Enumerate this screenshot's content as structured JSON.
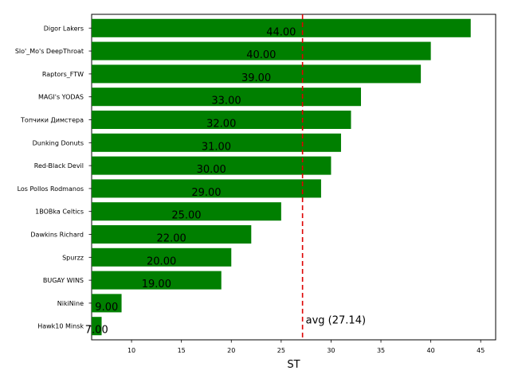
{
  "chart_data": {
    "type": "bar",
    "orientation": "horizontal",
    "categories": [
      "Digor Lakers",
      "Slo'_Mo's DeepThroat",
      "Raptors_FTW",
      "MAGI's YODAS",
      "Топчики Димстера",
      "Dunking Donuts",
      "Red-Black Devil",
      "Los Pollos Rodmanos",
      "1BOBka Celtics",
      "Dawkins Richard",
      "Spurzz",
      "BUGAY WINS",
      "NikiNine",
      "Hawk10 Minsk"
    ],
    "values": [
      44,
      40,
      39,
      33,
      32,
      31,
      30,
      29,
      25,
      22,
      20,
      19,
      9,
      7
    ],
    "value_labels": [
      "44.00",
      "40.00",
      "39.00",
      "33.00",
      "32.00",
      "31.00",
      "30.00",
      "29.00",
      "25.00",
      "22.00",
      "20.00",
      "19.00",
      "9.00",
      "7.00"
    ],
    "xlabel": "ST",
    "ylabel": "",
    "title": "",
    "xlim": [
      6,
      46.5
    ],
    "xticks": [
      10,
      15,
      20,
      25,
      30,
      35,
      40,
      45
    ],
    "xtick_labels": [
      "10",
      "15",
      "20",
      "25",
      "30",
      "35",
      "40",
      "45"
    ],
    "average": {
      "value": 27.14,
      "label": "avg (27.14)",
      "color": "#dd0000",
      "style": "dashed"
    },
    "bar_color": "#007f00",
    "grid": false,
    "legend": "none"
  }
}
